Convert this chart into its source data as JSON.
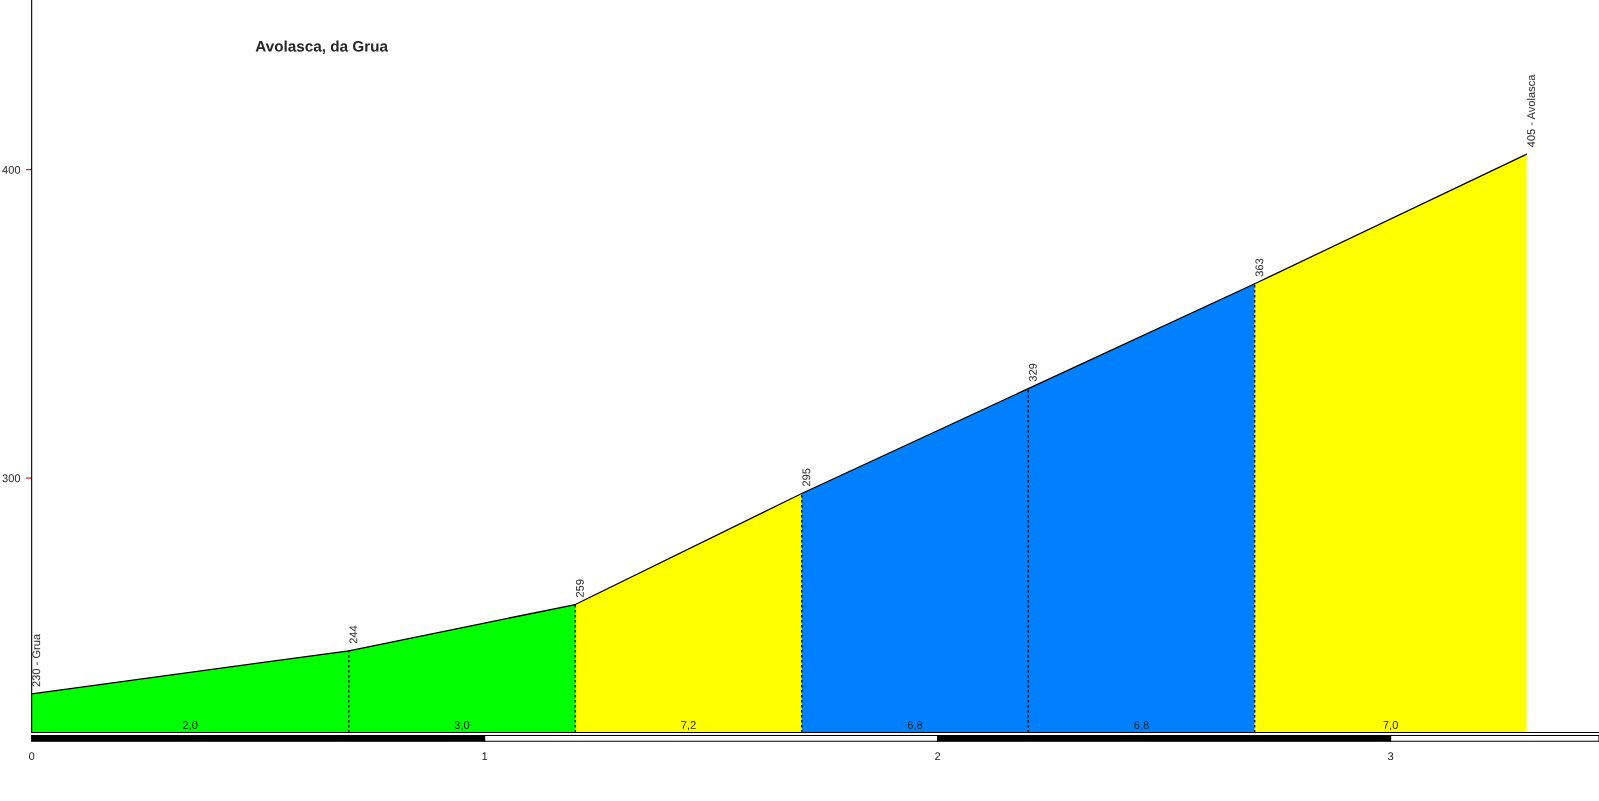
{
  "chart_data": {
    "type": "area",
    "title": "Avolasca, da Grua",
    "xlim": [
      0,
      3.46
    ],
    "ylim": [
      217.5,
      455
    ],
    "xticks": [
      0,
      1,
      2,
      3
    ],
    "yticks": [
      300,
      400
    ],
    "grid": false,
    "legend": false,
    "series": [
      {
        "color": "#00ff00",
        "x": [
          0,
          0.7,
          1.2
        ],
        "values": [
          230,
          244,
          259
        ]
      },
      {
        "color": "#ffff00",
        "x": [
          1.2,
          1.7
        ],
        "values": [
          259,
          295
        ]
      },
      {
        "color": "#0080ff",
        "x": [
          1.7,
          2.2,
          2.7
        ],
        "values": [
          295,
          329,
          363
        ]
      },
      {
        "color": "#ffff00",
        "x": [
          2.7,
          3.3
        ],
        "values": [
          363,
          405
        ]
      }
    ],
    "annotations": [
      {
        "text": "230 - Grua",
        "x": 0,
        "y": 230
      },
      {
        "text": "244",
        "x": 0.7,
        "y": 244
      },
      {
        "text": "259",
        "x": 1.2,
        "y": 259
      },
      {
        "text": "295",
        "x": 1.7,
        "y": 295
      },
      {
        "text": "329",
        "x": 2.2,
        "y": 329
      },
      {
        "text": "363",
        "x": 2.7,
        "y": 363
      },
      {
        "text": "405 - Avolasca",
        "x": 3.3,
        "y": 405
      },
      {
        "text": "2,0",
        "x": 0.35,
        "y": 217.5
      },
      {
        "text": "3,0",
        "x": 0.95,
        "y": 217.5
      },
      {
        "text": "7,2",
        "x": 1.45,
        "y": 217.5
      },
      {
        "text": "6,8",
        "x": 1.95,
        "y": 217.5
      },
      {
        "text": "6,8",
        "x": 2.45,
        "y": 217.5
      },
      {
        "text": "7,0",
        "x": 3.0,
        "y": 217.5
      }
    ]
  }
}
